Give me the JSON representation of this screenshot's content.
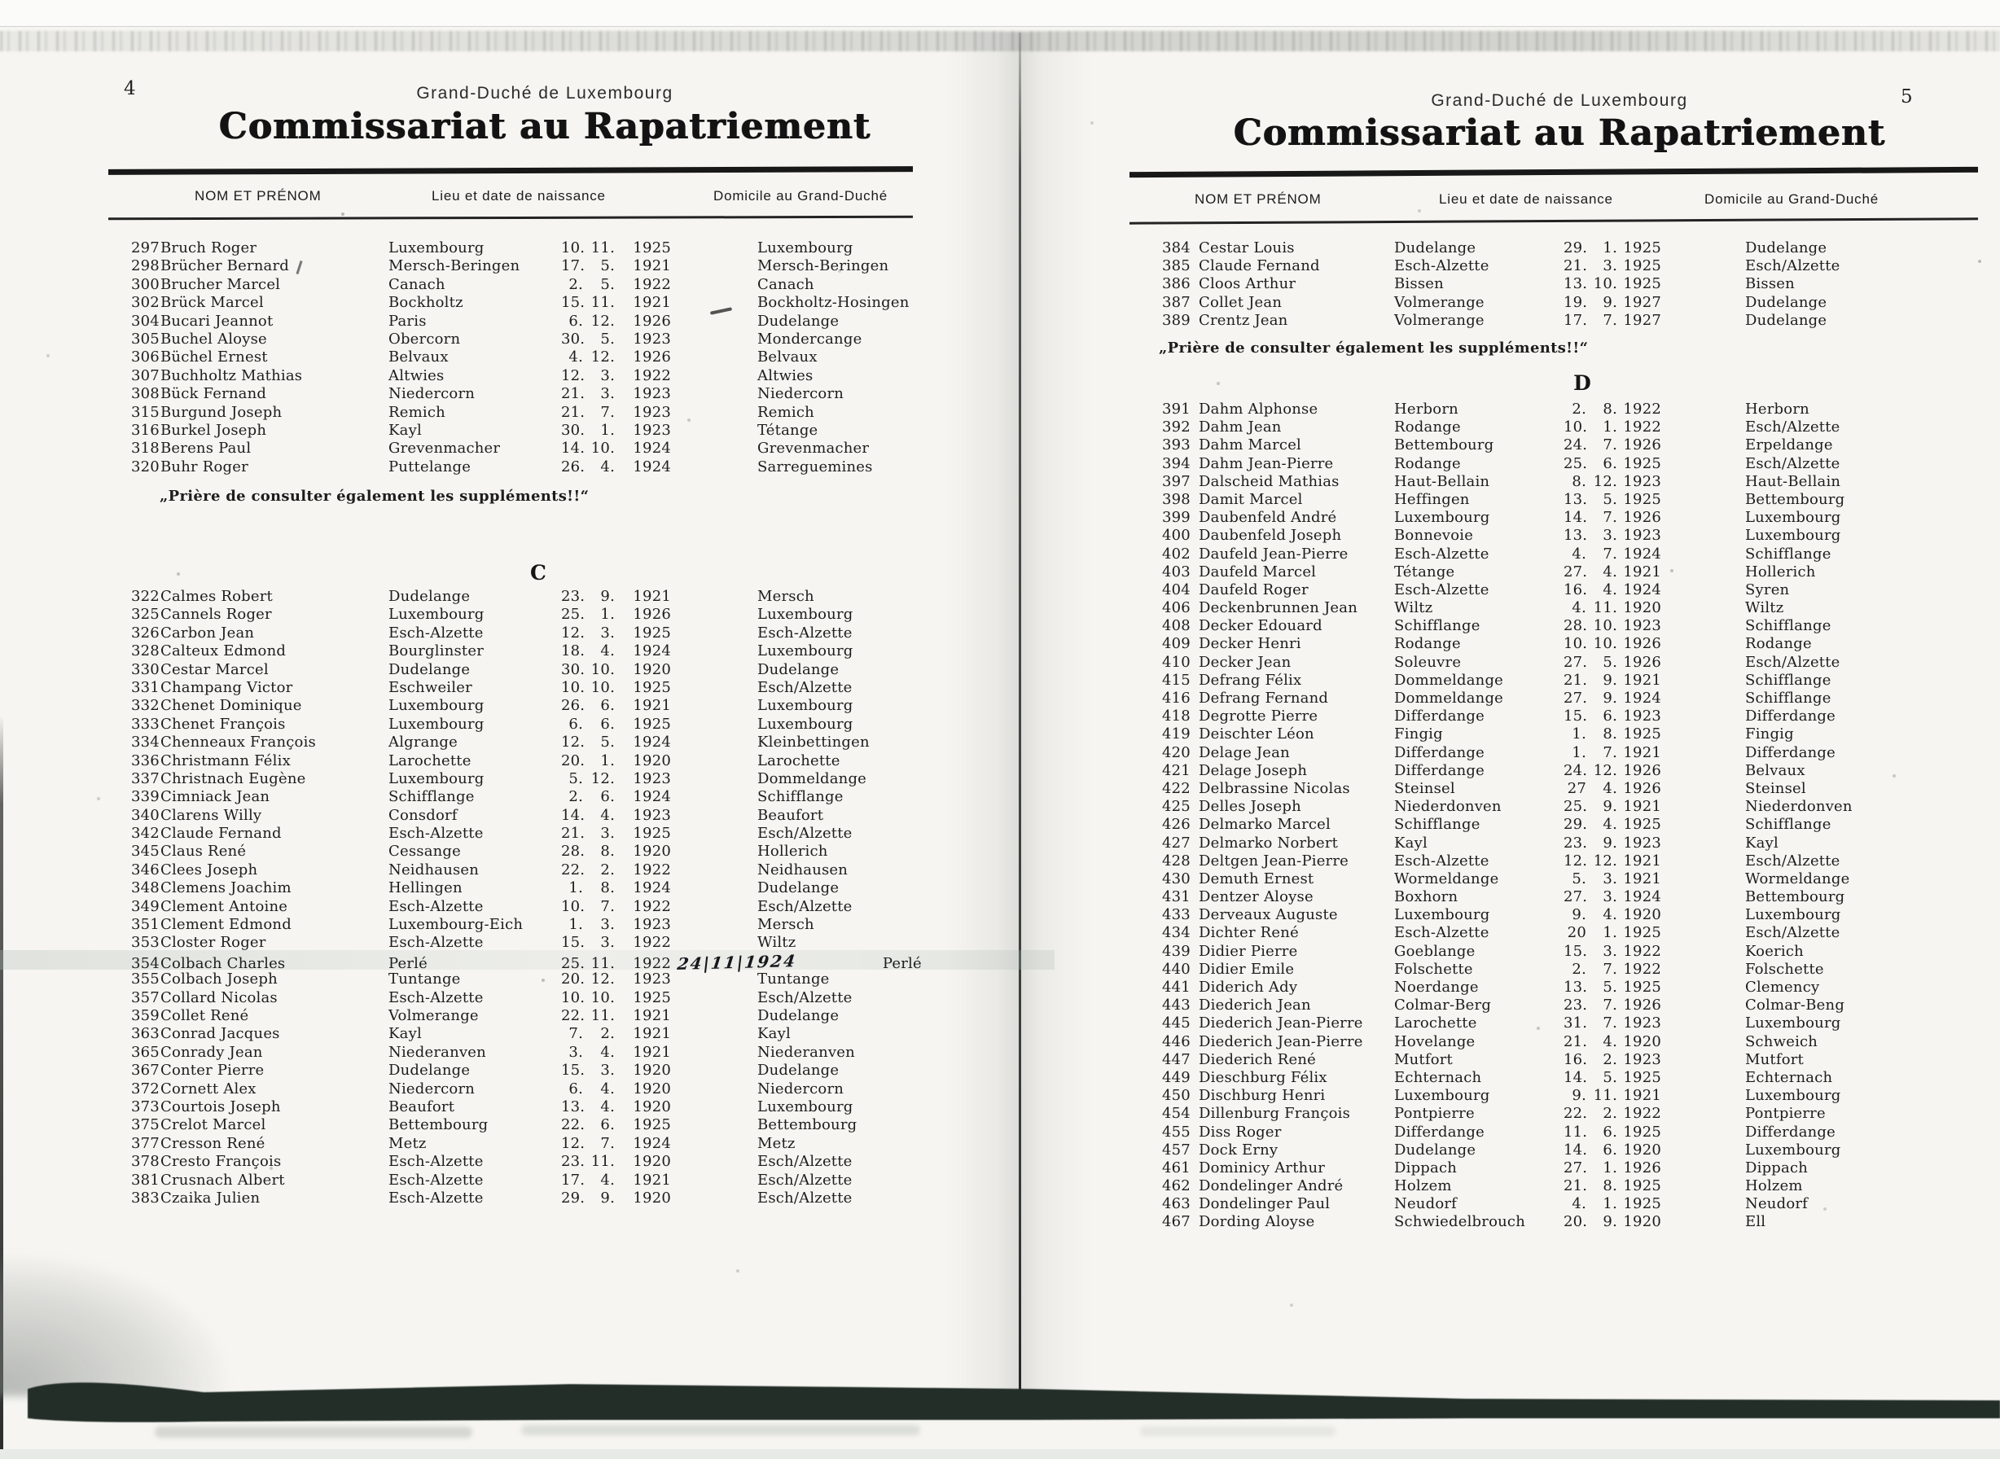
{
  "left_page": {
    "page_number": "4",
    "region": "Grand-Duché de Luxembourg",
    "title": "Commissariat au Rapatriement",
    "columns": {
      "name": "NOM ET PRÉNOM",
      "birth": "Lieu et date de naissance",
      "domicile": "Domicile au Grand-Duché"
    },
    "rows_b": [
      [
        "297",
        "Bruch Roger",
        "Luxembourg",
        "10.",
        "11.",
        "1925",
        "Luxembourg"
      ],
      [
        "298",
        "Brücher Bernard",
        "Mersch-Beringen",
        "17.",
        "5.",
        "1921",
        "Mersch-Beringen"
      ],
      [
        "300",
        "Brucher Marcel",
        "Canach",
        "2.",
        "5.",
        "1922",
        "Canach"
      ],
      [
        "302",
        "Brück Marcel",
        "Bockholtz",
        "15.",
        "11.",
        "1921",
        "Bockholtz-Hosingen"
      ],
      [
        "304",
        "Bucari Jeannot",
        "Paris",
        "6.",
        "12.",
        "1926",
        "Dudelange"
      ],
      [
        "305",
        "Buchel Aloyse",
        "Obercorn",
        "30.",
        "5.",
        "1923",
        "Mondercange"
      ],
      [
        "306",
        "Büchel Ernest",
        "Belvaux",
        "4.",
        "12.",
        "1926",
        "Belvaux"
      ],
      [
        "307",
        "Buchholtz Mathias",
        "Altwies",
        "12.",
        "3.",
        "1922",
        "Altwies"
      ],
      [
        "308",
        "Bück Fernand",
        "Niedercorn",
        "21.",
        "3.",
        "1923",
        "Niedercorn"
      ],
      [
        "315",
        "Burgund Joseph",
        "Remich",
        "21.",
        "7.",
        "1923",
        "Remich"
      ],
      [
        "316",
        "Burkel Joseph",
        "Kayl",
        "30.",
        "1.",
        "1923",
        "Tétange"
      ],
      [
        "318",
        "Berens Paul",
        "Grevenmacher",
        "14.",
        "10.",
        "1924",
        "Grevenmacher"
      ],
      [
        "320",
        "Buhr Roger",
        "Puttelange",
        "26.",
        "4.",
        "1924",
        "Sarreguemines"
      ]
    ],
    "note": "„Prière de consulter également les suppléments!!“",
    "section_letter": "C",
    "rows_c": [
      [
        "322",
        "Calmes Robert",
        "Dudelange",
        "23.",
        "9.",
        "1921",
        "Mersch"
      ],
      [
        "325",
        "Cannels Roger",
        "Luxembourg",
        "25.",
        "1.",
        "1926",
        "Luxembourg"
      ],
      [
        "326",
        "Carbon Jean",
        "Esch-Alzette",
        "12.",
        "3.",
        "1925",
        "Esch-Alzette"
      ],
      [
        "328",
        "Calteux Edmond",
        "Bourglinster",
        "18.",
        "4.",
        "1924",
        "Luxembourg"
      ],
      [
        "330",
        "Cestar Marcel",
        "Dudelange",
        "30.",
        "10.",
        "1920",
        "Dudelange"
      ],
      [
        "331",
        "Champang Victor",
        "Eschweiler",
        "10.",
        "10.",
        "1925",
        "Esch/Alzette"
      ],
      [
        "332",
        "Chenet Dominique",
        "Luxembourg",
        "26.",
        "6.",
        "1921",
        "Luxembourg"
      ],
      [
        "333",
        "Chenet François",
        "Luxembourg",
        "6.",
        "6.",
        "1925",
        "Luxembourg"
      ],
      [
        "334",
        "Chenneaux François",
        "Algrange",
        "12.",
        "5.",
        "1924",
        "Kleinbettingen"
      ],
      [
        "336",
        "Christmann Félix",
        "Larochette",
        "20.",
        "1.",
        "1920",
        "Larochette"
      ],
      [
        "337",
        "Christnach Eugène",
        "Luxembourg",
        "5.",
        "12.",
        "1923",
        "Dommeldange"
      ],
      [
        "339",
        "Cimniack Jean",
        "Schifflange",
        "2.",
        "6.",
        "1924",
        "Schifflange"
      ],
      [
        "340",
        "Clarens Willy",
        "Consdorf",
        "14.",
        "4.",
        "1923",
        "Beaufort"
      ],
      [
        "342",
        "Claude Fernand",
        "Esch-Alzette",
        "21.",
        "3.",
        "1925",
        "Esch/Alzette"
      ],
      [
        "345",
        "Claus René",
        "Cessange",
        "28.",
        "8.",
        "1920",
        "Hollerich"
      ],
      [
        "346",
        "Clees Joseph",
        "Neidhausen",
        "22.",
        "2.",
        "1922",
        "Neidhausen"
      ],
      [
        "348",
        "Clemens Joachim",
        "Hellingen",
        "1.",
        "8.",
        "1924",
        "Dudelange"
      ],
      [
        "349",
        "Clement Antoine",
        "Esch-Alzette",
        "10.",
        "7.",
        "1922",
        "Esch/Alzette"
      ],
      [
        "351",
        "Clement Edmond",
        "Luxembourg-Eich",
        "1.",
        "3.",
        "1923",
        "Mersch"
      ],
      [
        "353",
        "Closter Roger",
        "Esch-Alzette",
        "15.",
        "3.",
        "1922",
        "Wiltz"
      ],
      [
        "354",
        "Colbach Charles",
        "Perlé",
        "25.",
        "11.",
        "1922",
        "Perlé"
      ],
      [
        "355",
        "Colbach Joseph",
        "Tuntange",
        "20.",
        "12.",
        "1923",
        "Tuntange"
      ],
      [
        "357",
        "Collard Nicolas",
        "Esch-Alzette",
        "10.",
        "10.",
        "1925",
        "Esch/Alzette"
      ],
      [
        "359",
        "Collet René",
        "Volmerange",
        "22.",
        "11.",
        "1921",
        "Dudelange"
      ],
      [
        "363",
        "Conrad Jacques",
        "Kayl",
        "7.",
        "2.",
        "1921",
        "Kayl"
      ],
      [
        "365",
        "Conrady Jean",
        "Niederanven",
        "3.",
        "4.",
        "1921",
        "Niederanven"
      ],
      [
        "367",
        "Conter Pierre",
        "Dudelange",
        "15.",
        "3.",
        "1920",
        "Dudelange"
      ],
      [
        "372",
        "Cornett Alex",
        "Niedercorn",
        "6.",
        "4.",
        "1920",
        "Niedercorn"
      ],
      [
        "373",
        "Courtois Joseph",
        "Beaufort",
        "13.",
        "4.",
        "1920",
        "Luxembourg"
      ],
      [
        "375",
        "Crelot Marcel",
        "Bettembourg",
        "22.",
        "6.",
        "1925",
        "Bettembourg"
      ],
      [
        "377",
        "Cresson René",
        "Metz",
        "12.",
        "7.",
        "1924",
        "Metz"
      ],
      [
        "378",
        "Cresto François",
        "Esch-Alzette",
        "23.",
        "11.",
        "1920",
        "Esch/Alzette"
      ],
      [
        "381",
        "Crusnach Albert",
        "Esch-Alzette",
        "17.",
        "4.",
        "1921",
        "Esch/Alzette"
      ],
      [
        "383",
        "Czaika Julien",
        "Esch-Alzette",
        "29.",
        "9.",
        "1920",
        "Esch/Alzette"
      ]
    ],
    "highlighted_row": "354",
    "annotation": {
      "row": "354",
      "text": "24|11|1924"
    }
  },
  "right_page": {
    "page_number": "5",
    "region": "Grand-Duché de Luxembourg",
    "title": "Commissariat au Rapatriement",
    "columns": {
      "name": "NOM ET PRÉNOM",
      "birth": "Lieu et date de naissance",
      "domicile": "Domicile au Grand-Duché"
    },
    "rows_c": [
      [
        "384",
        "Cestar Louis",
        "Dudelange",
        "29.",
        "1.",
        "1925",
        "Dudelange"
      ],
      [
        "385",
        "Claude Fernand",
        "Esch-Alzette",
        "21.",
        "3.",
        "1925",
        "Esch/Alzette"
      ],
      [
        "386",
        "Cloos Arthur",
        "Bissen",
        "13.",
        "10.",
        "1925",
        "Bissen"
      ],
      [
        "387",
        "Collet Jean",
        "Volmerange",
        "19.",
        "9.",
        "1927",
        "Dudelange"
      ],
      [
        "389",
        "Crentz Jean",
        "Volmerange",
        "17.",
        "7.",
        "1927",
        "Dudelange"
      ]
    ],
    "note": "„Prière de consulter également les suppléments!!“",
    "section_letter": "D",
    "rows_d": [
      [
        "391",
        "Dahm Alphonse",
        "Herborn",
        "2.",
        "8.",
        "1922",
        "Herborn"
      ],
      [
        "392",
        "Dahm Jean",
        "Rodange",
        "10.",
        "1.",
        "1922",
        "Esch/Alzette"
      ],
      [
        "393",
        "Dahm Marcel",
        "Bettembourg",
        "24.",
        "7.",
        "1926",
        "Erpeldange"
      ],
      [
        "394",
        "Dahm Jean-Pierre",
        "Rodange",
        "25.",
        "6.",
        "1925",
        "Esch/Alzette"
      ],
      [
        "397",
        "Dalscheid Mathias",
        "Haut-Bellain",
        "8.",
        "12.",
        "1923",
        "Haut-Bellain"
      ],
      [
        "398",
        "Damit Marcel",
        "Heffingen",
        "13.",
        "5.",
        "1925",
        "Bettembourg"
      ],
      [
        "399",
        "Daubenfeld André",
        "Luxembourg",
        "14.",
        "7.",
        "1926",
        "Luxembourg"
      ],
      [
        "400",
        "Daubenfeld Joseph",
        "Bonnevoie",
        "13.",
        "3.",
        "1923",
        "Luxembourg"
      ],
      [
        "402",
        "Daufeld Jean-Pierre",
        "Esch-Alzette",
        "4.",
        "7.",
        "1924",
        "Schifflange"
      ],
      [
        "403",
        "Daufeld Marcel",
        "Tétange",
        "27.",
        "4.",
        "1921",
        "Hollerich"
      ],
      [
        "404",
        "Daufeld Roger",
        "Esch-Alzette",
        "16.",
        "4.",
        "1924",
        "Syren"
      ],
      [
        "406",
        "Deckenbrunnen Jean",
        "Wiltz",
        "4.",
        "11.",
        "1920",
        "Wiltz"
      ],
      [
        "408",
        "Decker Edouard",
        "Schifflange",
        "28.",
        "10.",
        "1923",
        "Schifflange"
      ],
      [
        "409",
        "Decker Henri",
        "Rodange",
        "10.",
        "10.",
        "1926",
        "Rodange"
      ],
      [
        "410",
        "Decker Jean",
        "Soleuvre",
        "27.",
        "5.",
        "1926",
        "Esch/Alzette"
      ],
      [
        "415",
        "Defrang Félix",
        "Dommeldange",
        "21.",
        "9.",
        "1921",
        "Schifflange"
      ],
      [
        "416",
        "Defrang Fernand",
        "Dommeldange",
        "27.",
        "9.",
        "1924",
        "Schifflange"
      ],
      [
        "418",
        "Degrotte Pierre",
        "Differdange",
        "15.",
        "6.",
        "1923",
        "Differdange"
      ],
      [
        "419",
        "Deischter Léon",
        "Fingig",
        "1.",
        "8.",
        "1925",
        "Fingig"
      ],
      [
        "420",
        "Delage Jean",
        "Differdange",
        "1.",
        "7.",
        "1921",
        "Differdange"
      ],
      [
        "421",
        "Delage Joseph",
        "Differdange",
        "24.",
        "12.",
        "1926",
        "Belvaux"
      ],
      [
        "422",
        "Delbrassine Nicolas",
        "Steinsel",
        "27",
        "4.",
        "1926",
        "Steinsel"
      ],
      [
        "425",
        "Delles Joseph",
        "Niederdonven",
        "25.",
        "9.",
        "1921",
        "Niederdonven"
      ],
      [
        "426",
        "Delmarko Marcel",
        "Schifflange",
        "29.",
        "4.",
        "1925",
        "Schifflange"
      ],
      [
        "427",
        "Delmarko Norbert",
        "Kayl",
        "23.",
        "9.",
        "1923",
        "Kayl"
      ],
      [
        "428",
        "Deltgen Jean-Pierre",
        "Esch-Alzette",
        "12.",
        "12.",
        "1921",
        "Esch/Alzette"
      ],
      [
        "430",
        "Demuth Ernest",
        "Wormeldange",
        "5.",
        "3.",
        "1921",
        "Wormeldange"
      ],
      [
        "431",
        "Dentzer Aloyse",
        "Boxhorn",
        "27.",
        "3.",
        "1924",
        "Bettembourg"
      ],
      [
        "433",
        "Derveaux Auguste",
        "Luxembourg",
        "9.",
        "4.",
        "1920",
        "Luxembourg"
      ],
      [
        "434",
        "Dichter René",
        "Esch-Alzette",
        "20",
        "1.",
        "1925",
        "Esch/Alzette"
      ],
      [
        "439",
        "Didier Pierre",
        "Goeblange",
        "15.",
        "3.",
        "1922",
        "Koerich"
      ],
      [
        "440",
        "Didier Emile",
        "Folschette",
        "2.",
        "7.",
        "1922",
        "Folschette"
      ],
      [
        "441",
        "Diderich Ady",
        "Noerdange",
        "13.",
        "5.",
        "1925",
        "Clemency"
      ],
      [
        "443",
        "Diederich Jean",
        "Colmar-Berg",
        "23.",
        "7.",
        "1926",
        "Colmar-Beng"
      ],
      [
        "445",
        "Diederich Jean-Pierre",
        "Larochette",
        "31.",
        "7.",
        "1923",
        "Luxembourg"
      ],
      [
        "446",
        "Diederich Jean-Pierre",
        "Hovelange",
        "21.",
        "4.",
        "1920",
        "Schweich"
      ],
      [
        "447",
        "Diederich René",
        "Mutfort",
        "16.",
        "2.",
        "1923",
        "Mutfort"
      ],
      [
        "449",
        "Dieschburg Félix",
        "Echternach",
        "14.",
        "5.",
        "1925",
        "Echternach"
      ],
      [
        "450",
        "Dischburg Henri",
        "Luxembourg",
        "9.",
        "11.",
        "1921",
        "Luxembourg"
      ],
      [
        "454",
        "Dillenburg François",
        "Pontpierre",
        "22.",
        "2.",
        "1922",
        "Pontpierre"
      ],
      [
        "455",
        "Diss Roger",
        "Differdange",
        "11.",
        "6.",
        "1925",
        "Differdange"
      ],
      [
        "457",
        "Dock Erny",
        "Dudelange",
        "14.",
        "6.",
        "1920",
        "Luxembourg"
      ],
      [
        "461",
        "Dominicy Arthur",
        "Dippach",
        "27.",
        "1.",
        "1926",
        "Dippach"
      ],
      [
        "462",
        "Dondelinger André",
        "Holzem",
        "21.",
        "8.",
        "1925",
        "Holzem"
      ],
      [
        "463",
        "Dondelinger Paul",
        "Neudorf",
        "4.",
        "1.",
        "1925",
        "Neudorf"
      ],
      [
        "467",
        "Dording Aloyse",
        "Schwiedelbrouch",
        "20.",
        "9.",
        "1920",
        "Ell"
      ]
    ]
  },
  "scan_colors": {
    "paper": "#f6f5f1",
    "ink": "#1d1d1d",
    "bottom_bar": "#232e28"
  }
}
